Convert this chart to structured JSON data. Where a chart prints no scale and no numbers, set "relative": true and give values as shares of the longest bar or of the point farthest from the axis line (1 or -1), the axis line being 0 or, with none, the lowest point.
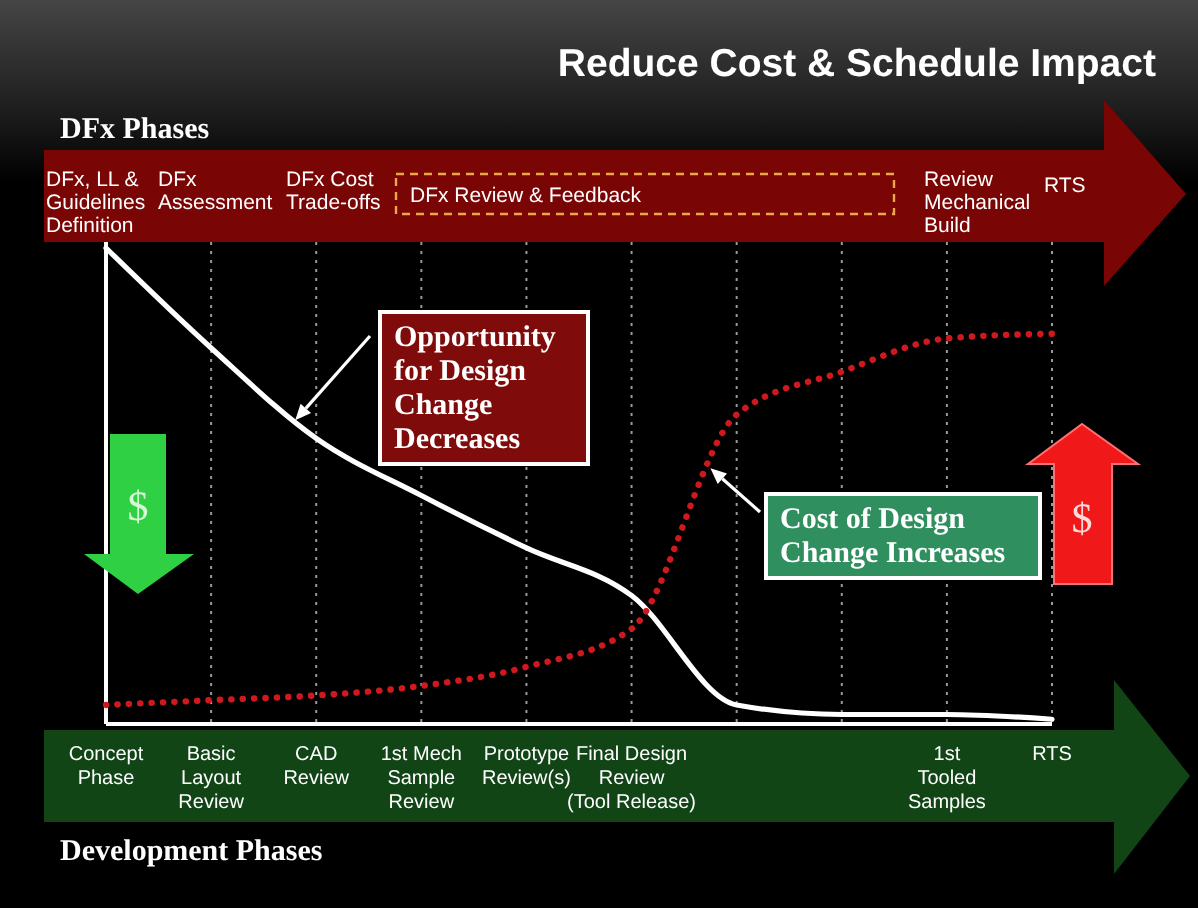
{
  "chart_data": {
    "type": "line",
    "title": "Reduce Cost & Schedule Impact",
    "xlabel": "Development Phases",
    "x2label": "DFx Phases",
    "categories": [
      "Concept Phase",
      "Basic Layout Review",
      "CAD Review",
      "1st Mech Sample Review",
      "Prototype Review(s)",
      "Final Design Review (Tool Release)",
      null,
      null,
      "1st Tooled Samples",
      "RTS"
    ],
    "relative": true,
    "series": [
      {
        "name": "Opportunity for Design Change Decreases",
        "color": "#ffffff",
        "line_style": "solid",
        "values": [
          1,
          0.79,
          0.6,
          0.48,
          0.37,
          0.27,
          0.04,
          0.02,
          0.02,
          0.01
        ]
      },
      {
        "name": "Cost of Design Change Increases",
        "color": "#d0191e",
        "line_style": "dotted",
        "values": [
          0.04,
          0.05,
          0.06,
          0.08,
          0.12,
          0.2,
          0.65,
          0.74,
          0.81,
          0.82
        ]
      }
    ],
    "grid": "x",
    "annotations": [
      "DFx, LL & Guidelines Definition",
      "DFx Assessment",
      "DFx Cost Trade-offs",
      "DFx Review & Feedback",
      "Review Mechanical Build",
      "RTS",
      "$",
      "$"
    ]
  }
}
